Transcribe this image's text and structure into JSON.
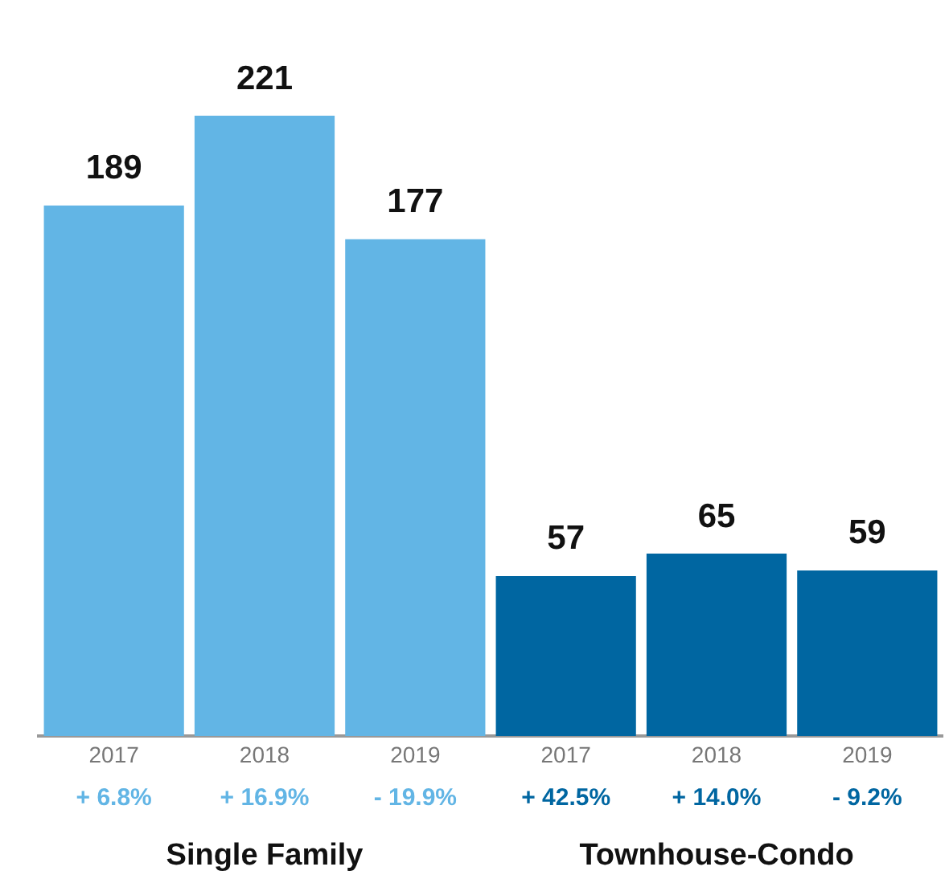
{
  "chart_data": {
    "type": "bar",
    "categories": [
      "2017",
      "2018",
      "2019",
      "2017",
      "2018",
      "2019"
    ],
    "series": [
      {
        "color": "#62b5e5",
        "values": [
          189,
          221,
          177,
          null,
          null,
          null
        ]
      },
      {
        "color": "#0066a1",
        "values": [
          null,
          null,
          null,
          57,
          65,
          59
        ]
      }
    ],
    "data_labels": true,
    "grid": false,
    "legend": false,
    "annotations": [
      "+ 6.8%",
      "+ 16.9%",
      "- 19.9%",
      "+ 42.5%",
      "+ 14.0%",
      "- 9.2%",
      "Single Family",
      "Townhouse-Condo"
    ]
  }
}
